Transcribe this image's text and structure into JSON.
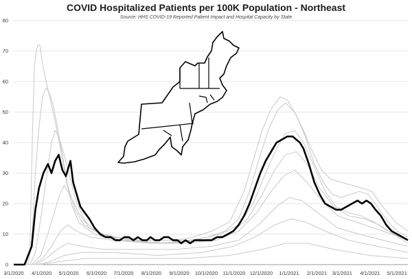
{
  "chart_data": {
    "type": "line",
    "title": "COVID Hospitalized Patients per 100K Population - Northeast",
    "subtitle": "Source: HHS COVID-19 Reported Patient Impact and Hospital Capacity by State",
    "xlabel": "",
    "ylabel": "",
    "ylim": [
      0,
      80
    ],
    "yticks": [
      0,
      10,
      20,
      30,
      40,
      50,
      60,
      70,
      80
    ],
    "x_tick_labels": [
      "3/1/2020",
      "4/1/2020",
      "5/1/2020",
      "6/1/2020",
      "7/1/2020",
      "8/1/2020",
      "9/1/2020",
      "10/1/2020",
      "11/1/2020",
      "12/1/2020",
      "1/1/2021",
      "2/1/2021",
      "3/1/2021",
      "4/1/2021",
      "5/1/2021"
    ],
    "grid": "horizontal",
    "legend": "none",
    "colors": {
      "region_line": "#000000",
      "state_lines": "#c8c8c8",
      "grid": "#e6e6e6",
      "axis": "#999999"
    },
    "series": [
      {
        "values": [
          [
            0,
            0
          ],
          [
            12,
            0
          ],
          [
            20,
            6
          ],
          [
            24,
            18
          ],
          [
            28,
            25
          ],
          [
            33,
            30
          ],
          [
            38,
            33
          ],
          [
            42,
            30
          ],
          [
            46,
            34
          ],
          [
            50,
            36
          ],
          [
            54,
            31
          ],
          [
            58,
            29
          ],
          [
            61,
            32
          ],
          [
            63,
            34
          ],
          [
            66,
            27
          ],
          [
            70,
            23
          ],
          [
            74,
            19
          ],
          [
            79,
            17
          ],
          [
            84,
            15
          ],
          [
            90,
            12
          ],
          [
            96,
            10
          ],
          [
            102,
            9
          ],
          [
            108,
            9
          ],
          [
            113,
            8
          ],
          [
            118,
            8
          ],
          [
            123,
            9
          ],
          [
            128,
            9
          ],
          [
            133,
            8
          ],
          [
            138,
            9
          ],
          [
            143,
            8
          ],
          [
            148,
            8
          ],
          [
            152,
            9
          ],
          [
            157,
            8
          ],
          [
            162,
            8
          ],
          [
            167,
            9
          ],
          [
            172,
            9
          ],
          [
            177,
            8
          ],
          [
            182,
            8
          ],
          [
            186,
            7
          ],
          [
            191,
            8
          ],
          [
            196,
            7
          ],
          [
            201,
            8
          ],
          [
            206,
            8
          ],
          [
            210,
            8
          ],
          [
            215,
            8
          ],
          [
            220,
            8
          ],
          [
            226,
            9
          ],
          [
            232,
            9
          ],
          [
            238,
            10
          ],
          [
            244,
            11
          ],
          [
            250,
            13
          ],
          [
            256,
            16
          ],
          [
            262,
            20
          ],
          [
            268,
            25
          ],
          [
            274,
            30
          ],
          [
            280,
            34
          ],
          [
            286,
            37
          ],
          [
            292,
            40
          ],
          [
            298,
            41
          ],
          [
            304,
            42
          ],
          [
            310,
            42
          ],
          [
            314,
            41
          ],
          [
            318,
            40
          ],
          [
            322,
            38
          ],
          [
            328,
            33
          ],
          [
            334,
            27
          ],
          [
            340,
            23
          ],
          [
            346,
            20
          ],
          [
            352,
            19
          ],
          [
            358,
            18
          ],
          [
            364,
            18
          ],
          [
            370,
            19
          ],
          [
            376,
            20
          ],
          [
            382,
            21
          ],
          [
            387,
            20
          ],
          [
            392,
            21
          ],
          [
            397,
            20
          ],
          [
            402,
            18
          ],
          [
            408,
            16
          ],
          [
            414,
            13
          ],
          [
            420,
            11
          ],
          [
            426,
            10
          ],
          [
            432,
            9
          ],
          [
            438,
            8
          ]
        ]
      },
      {
        "values": [
          [
            0,
            0
          ],
          [
            14,
            0
          ],
          [
            18,
            5
          ],
          [
            21,
            45
          ],
          [
            23,
            65
          ],
          [
            25,
            70
          ],
          [
            27,
            72
          ],
          [
            29,
            72
          ],
          [
            32,
            66
          ],
          [
            36,
            60
          ],
          [
            40,
            55
          ],
          [
            46,
            47
          ],
          [
            52,
            38
          ],
          [
            58,
            28
          ],
          [
            64,
            20
          ],
          [
            72,
            14
          ],
          [
            80,
            12
          ],
          [
            90,
            10
          ],
          [
            100,
            9
          ],
          [
            120,
            8
          ],
          [
            150,
            8
          ],
          [
            180,
            8
          ],
          [
            200,
            9
          ],
          [
            220,
            11
          ],
          [
            240,
            14
          ],
          [
            256,
            24
          ],
          [
            266,
            34
          ],
          [
            276,
            44
          ],
          [
            286,
            51
          ],
          [
            296,
            55
          ],
          [
            304,
            54
          ],
          [
            314,
            49
          ],
          [
            324,
            42
          ],
          [
            334,
            33
          ],
          [
            344,
            27
          ],
          [
            354,
            23
          ],
          [
            364,
            22
          ],
          [
            374,
            23
          ],
          [
            384,
            24
          ],
          [
            394,
            23
          ],
          [
            404,
            19
          ],
          [
            416,
            14
          ],
          [
            426,
            11
          ],
          [
            438,
            9
          ]
        ]
      },
      {
        "values": [
          [
            0,
            0
          ],
          [
            16,
            0
          ],
          [
            20,
            8
          ],
          [
            24,
            30
          ],
          [
            28,
            45
          ],
          [
            32,
            55
          ],
          [
            36,
            58
          ],
          [
            40,
            56
          ],
          [
            44,
            52
          ],
          [
            48,
            46
          ],
          [
            54,
            36
          ],
          [
            60,
            26
          ],
          [
            68,
            18
          ],
          [
            78,
            13
          ],
          [
            90,
            11
          ],
          [
            110,
            9
          ],
          [
            140,
            8
          ],
          [
            170,
            8
          ],
          [
            195,
            8
          ],
          [
            215,
            9
          ],
          [
            235,
            11
          ],
          [
            250,
            15
          ],
          [
            262,
            24
          ],
          [
            274,
            36
          ],
          [
            284,
            45
          ],
          [
            294,
            51
          ],
          [
            302,
            53
          ],
          [
            312,
            50
          ],
          [
            322,
            44
          ],
          [
            332,
            37
          ],
          [
            342,
            31
          ],
          [
            352,
            28
          ],
          [
            364,
            27
          ],
          [
            376,
            26
          ],
          [
            388,
            25
          ],
          [
            398,
            24
          ],
          [
            410,
            19
          ],
          [
            424,
            14
          ],
          [
            438,
            11
          ]
        ]
      },
      {
        "values": [
          [
            0,
            0
          ],
          [
            18,
            0
          ],
          [
            24,
            4
          ],
          [
            30,
            15
          ],
          [
            36,
            28
          ],
          [
            42,
            40
          ],
          [
            46,
            44
          ],
          [
            50,
            42
          ],
          [
            56,
            36
          ],
          [
            62,
            29
          ],
          [
            70,
            20
          ],
          [
            80,
            14
          ],
          [
            95,
            10
          ],
          [
            120,
            8
          ],
          [
            160,
            7
          ],
          [
            200,
            8
          ],
          [
            230,
            10
          ],
          [
            250,
            13
          ],
          [
            266,
            20
          ],
          [
            280,
            30
          ],
          [
            292,
            38
          ],
          [
            302,
            43
          ],
          [
            312,
            44
          ],
          [
            322,
            40
          ],
          [
            334,
            32
          ],
          [
            346,
            24
          ],
          [
            358,
            19
          ],
          [
            372,
            17
          ],
          [
            386,
            16
          ],
          [
            400,
            14
          ],
          [
            416,
            11
          ],
          [
            438,
            8
          ]
        ]
      },
      {
        "values": [
          [
            0,
            0
          ],
          [
            20,
            0
          ],
          [
            30,
            3
          ],
          [
            40,
            12
          ],
          [
            50,
            22
          ],
          [
            56,
            26
          ],
          [
            62,
            23
          ],
          [
            72,
            17
          ],
          [
            84,
            12
          ],
          [
            100,
            10
          ],
          [
            130,
            8
          ],
          [
            170,
            7
          ],
          [
            210,
            8
          ],
          [
            240,
            10
          ],
          [
            260,
            15
          ],
          [
            276,
            23
          ],
          [
            290,
            31
          ],
          [
            302,
            36
          ],
          [
            314,
            37
          ],
          [
            326,
            33
          ],
          [
            340,
            25
          ],
          [
            356,
            19
          ],
          [
            372,
            16
          ],
          [
            390,
            15
          ],
          [
            406,
            13
          ],
          [
            422,
            10
          ],
          [
            438,
            7
          ]
        ]
      },
      {
        "values": [
          [
            0,
            0
          ],
          [
            22,
            0
          ],
          [
            32,
            2
          ],
          [
            42,
            6
          ],
          [
            52,
            11
          ],
          [
            60,
            13
          ],
          [
            70,
            11
          ],
          [
            85,
            9
          ],
          [
            110,
            8
          ],
          [
            150,
            7
          ],
          [
            190,
            7
          ],
          [
            225,
            8
          ],
          [
            250,
            11
          ],
          [
            270,
            17
          ],
          [
            286,
            24
          ],
          [
            300,
            29
          ],
          [
            312,
            31
          ],
          [
            326,
            27
          ],
          [
            342,
            21
          ],
          [
            360,
            16
          ],
          [
            380,
            14
          ],
          [
            400,
            12
          ],
          [
            420,
            10
          ],
          [
            438,
            8
          ]
        ]
      },
      {
        "values": [
          [
            0,
            0
          ],
          [
            24,
            0
          ],
          [
            36,
            2
          ],
          [
            48,
            5
          ],
          [
            60,
            7
          ],
          [
            75,
            6
          ],
          [
            100,
            5
          ],
          [
            140,
            5
          ],
          [
            180,
            5
          ],
          [
            220,
            6
          ],
          [
            250,
            8
          ],
          [
            272,
            13
          ],
          [
            292,
            19
          ],
          [
            306,
            22
          ],
          [
            320,
            21
          ],
          [
            338,
            17
          ],
          [
            360,
            12
          ],
          [
            384,
            10
          ],
          [
            410,
            8
          ],
          [
            438,
            6
          ]
        ]
      },
      {
        "values": [
          [
            0,
            0
          ],
          [
            26,
            0
          ],
          [
            40,
            1
          ],
          [
            56,
            3
          ],
          [
            76,
            4
          ],
          [
            110,
            4
          ],
          [
            160,
            3
          ],
          [
            210,
            4
          ],
          [
            244,
            6
          ],
          [
            268,
            9
          ],
          [
            290,
            13
          ],
          [
            308,
            15
          ],
          [
            324,
            14
          ],
          [
            346,
            11
          ],
          [
            372,
            8
          ],
          [
            404,
            6
          ],
          [
            438,
            4
          ]
        ]
      },
      {
        "values": [
          [
            0,
            0
          ],
          [
            30,
            0
          ],
          [
            50,
            1
          ],
          [
            80,
            2
          ],
          [
            130,
            2
          ],
          [
            190,
            2
          ],
          [
            240,
            3
          ],
          [
            276,
            5
          ],
          [
            302,
            7
          ],
          [
            326,
            7
          ],
          [
            356,
            5
          ],
          [
            396,
            3
          ],
          [
            438,
            2
          ]
        ]
      }
    ]
  }
}
